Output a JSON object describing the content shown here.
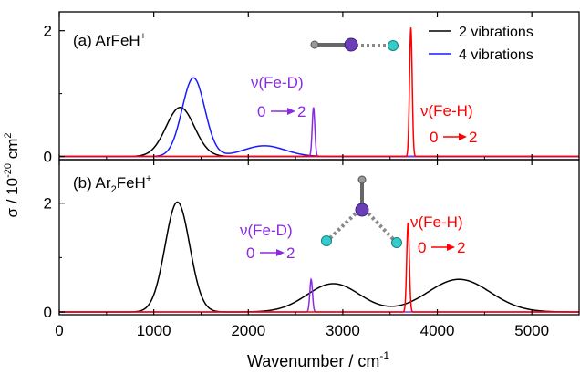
{
  "chart_data": {
    "type": "line",
    "xlabel_main": "Wavenumber / cm",
    "xlabel_sup": "-1",
    "ylabel_pre": "σ / 10",
    "ylabel_sup": "-20",
    "ylabel_post": " cm",
    "ylabel_sup2": "2",
    "xlim": [
      0,
      5500
    ],
    "xticks": [
      "0",
      "1000",
      "2000",
      "3000",
      "4000",
      "5000"
    ],
    "xtick_values": [
      0,
      1000,
      2000,
      3000,
      4000,
      5000
    ],
    "legend": {
      "position": "top-right",
      "entries": [
        {
          "label": "2 vibrations",
          "color": "#000000"
        },
        {
          "label": "4 vibrations",
          "color": "#1a1aff"
        }
      ]
    },
    "colors": {
      "black": "#000000",
      "blue": "#1a1aff",
      "red": "#ff0000",
      "purple": "#8a2be2",
      "atom_center": "#6a3fb5",
      "atom_h": "#33cccc",
      "atom_ar": "#888888"
    },
    "panels": [
      {
        "label_pre": "(a) ArFeH",
        "label_sup": "+",
        "ylim": [
          -0.05,
          2.3
        ],
        "yticks": [
          "0",
          "2"
        ],
        "ytick_values": [
          0,
          2
        ],
        "annot_fed_1": "ν(Fe-D)",
        "annot_fed_2": "0",
        "annot_fed_3": "2",
        "annot_feh_1": "ν(Fe-H)",
        "annot_feh_2": "0",
        "annot_feh_3": "2",
        "series": [
          {
            "name": "2 vibrations",
            "color": "#000000",
            "peaks": [
              [
                1280,
                0.78,
                150
              ]
            ]
          },
          {
            "name": "4 vibrations",
            "color": "#1a1aff",
            "peaks": [
              [
                1420,
                1.25,
                120
              ],
              [
                2170,
                0.17,
                220
              ]
            ]
          },
          {
            "color": "#8a2be2",
            "peaks": [
              [
                2690,
                0.78,
                14
              ]
            ]
          },
          {
            "color": "#ff0000",
            "peaks": [
              [
                3720,
                2.05,
                14
              ]
            ]
          }
        ]
      },
      {
        "label_pre": "(b) Ar",
        "label_sub": "2",
        "label_post": "FeH",
        "label_sup": "+",
        "ylim": [
          -0.05,
          2.8
        ],
        "yticks": [
          "0",
          "2"
        ],
        "ytick_values": [
          0,
          2
        ],
        "annot_fed_1": "ν(Fe-D)",
        "annot_fed_2": "0",
        "annot_fed_3": "2",
        "annot_feh_1": "ν(Fe-H)",
        "annot_feh_2": "0",
        "annot_feh_3": "2",
        "series": [
          {
            "color": "#000000",
            "peaks": [
              [
                1250,
                2.02,
                130
              ],
              [
                2900,
                0.52,
                280
              ],
              [
                4230,
                0.6,
                330
              ]
            ]
          },
          {
            "color": "#8a2be2",
            "peaks": [
              [
                2665,
                0.6,
                14
              ]
            ]
          },
          {
            "color": "#ff0000",
            "peaks": [
              [
                3690,
                1.65,
                14
              ]
            ]
          }
        ]
      }
    ]
  }
}
